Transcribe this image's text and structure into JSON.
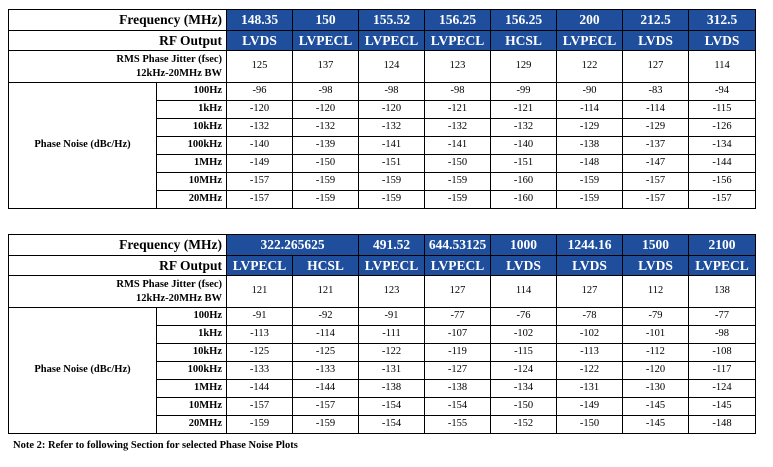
{
  "table1": {
    "freq_label": "Frequency (MHz)",
    "output_label": "RF Output",
    "jitter_label_line1": "RMS Phase Jitter (fsec)",
    "jitter_label_line2": "12kHz-20MHz BW",
    "phase_noise_label": "Phase Noise (dBc/Hz)",
    "frequencies": [
      "148.35",
      "150",
      "155.52",
      "156.25",
      "156.25",
      "200",
      "212.5",
      "312.5"
    ],
    "outputs": [
      "LVDS",
      "LVPECL",
      "LVPECL",
      "LVPECL",
      "HCSL",
      "LVPECL",
      "LVDS",
      "LVDS"
    ],
    "jitter": [
      "125",
      "137",
      "124",
      "123",
      "129",
      "122",
      "127",
      "114"
    ],
    "offsets": [
      {
        "label": "100Hz",
        "values": [
          "-96",
          "-98",
          "-98",
          "-98",
          "-99",
          "-90",
          "-83",
          "-94"
        ]
      },
      {
        "label": "1kHz",
        "values": [
          "-120",
          "-120",
          "-120",
          "-121",
          "-121",
          "-114",
          "-114",
          "-115"
        ]
      },
      {
        "label": "10kHz",
        "values": [
          "-132",
          "-132",
          "-132",
          "-132",
          "-132",
          "-129",
          "-129",
          "-126"
        ]
      },
      {
        "label": "100kHz",
        "values": [
          "-140",
          "-139",
          "-141",
          "-141",
          "-140",
          "-138",
          "-137",
          "-134"
        ]
      },
      {
        "label": "1MHz",
        "values": [
          "-149",
          "-150",
          "-151",
          "-150",
          "-151",
          "-148",
          "-147",
          "-144"
        ]
      },
      {
        "label": "10MHz",
        "values": [
          "-157",
          "-159",
          "-159",
          "-159",
          "-160",
          "-159",
          "-157",
          "-156"
        ]
      },
      {
        "label": "20MHz",
        "values": [
          "-157",
          "-159",
          "-159",
          "-159",
          "-160",
          "-159",
          "-157",
          "-157"
        ]
      }
    ]
  },
  "table2": {
    "freq_label": "Frequency (MHz)",
    "output_label": "RF Output",
    "jitter_label_line1": "RMS Phase Jitter (fsec)",
    "jitter_label_line2": "12kHz-20MHz BW",
    "phase_noise_label": "Phase Noise (dBc/Hz)",
    "frequency_322": "322.265625",
    "frequencies": [
      "491.52",
      "644.53125",
      "1000",
      "1244.16",
      "1500",
      "2100"
    ],
    "outputs": [
      "LVPECL",
      "HCSL",
      "LVPECL",
      "LVPECL",
      "LVDS",
      "LVDS",
      "LVDS",
      "LVPECL"
    ],
    "jitter": [
      "121",
      "121",
      "123",
      "127",
      "114",
      "127",
      "112",
      "138"
    ],
    "offsets": [
      {
        "label": "100Hz",
        "values": [
          "-91",
          "-92",
          "-91",
          "-77",
          "-76",
          "-78",
          "-79",
          "-77"
        ]
      },
      {
        "label": "1kHz",
        "values": [
          "-113",
          "-114",
          "-111",
          "-107",
          "-102",
          "-102",
          "-101",
          "-98"
        ]
      },
      {
        "label": "10kHz",
        "values": [
          "-125",
          "-125",
          "-122",
          "-119",
          "-115",
          "-113",
          "-112",
          "-108"
        ]
      },
      {
        "label": "100kHz",
        "values": [
          "-133",
          "-133",
          "-131",
          "-127",
          "-124",
          "-122",
          "-120",
          "-117"
        ]
      },
      {
        "label": "1MHz",
        "values": [
          "-144",
          "-144",
          "-138",
          "-138",
          "-134",
          "-131",
          "-130",
          "-124"
        ]
      },
      {
        "label": "10MHz",
        "values": [
          "-157",
          "-157",
          "-154",
          "-154",
          "-150",
          "-149",
          "-145",
          "-145"
        ]
      },
      {
        "label": "20MHz",
        "values": [
          "-159",
          "-159",
          "-154",
          "-155",
          "-152",
          "-150",
          "-145",
          "-148"
        ]
      }
    ]
  },
  "note": "Note 2: Refer to following Section for selected Phase Noise Plots",
  "colors": {
    "header_bg": "#1f4e9c",
    "header_text": "#ffffff"
  }
}
